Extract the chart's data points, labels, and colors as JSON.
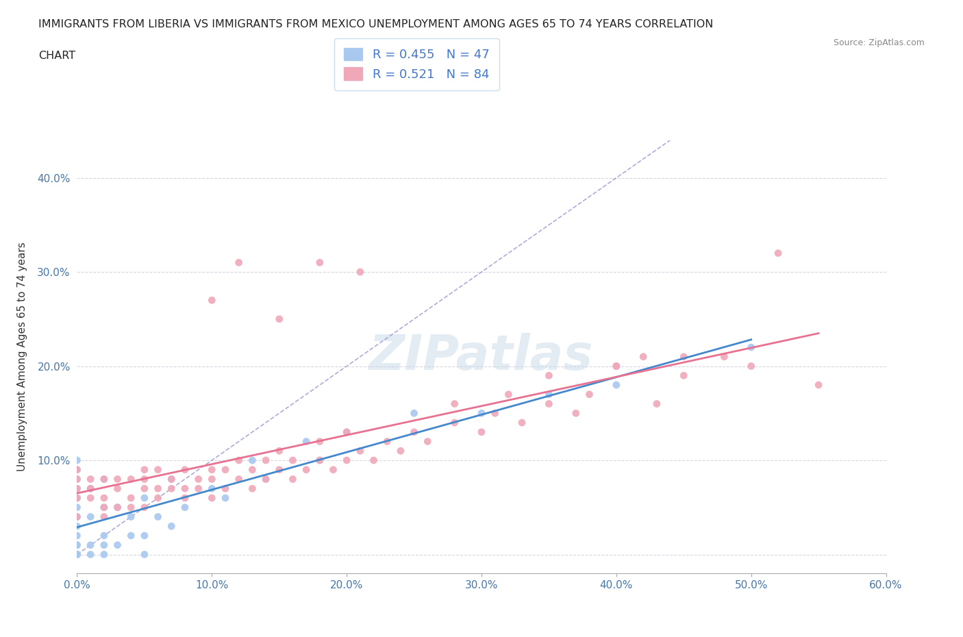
{
  "title_line1": "IMMIGRANTS FROM LIBERIA VS IMMIGRANTS FROM MEXICO UNEMPLOYMENT AMONG AGES 65 TO 74 YEARS CORRELATION",
  "title_line2": "CHART",
  "source": "Source: ZipAtlas.com",
  "ylabel": "Unemployment Among Ages 65 to 74 years",
  "xlabel": "",
  "xlim": [
    0.0,
    0.6
  ],
  "ylim": [
    -0.02,
    0.44
  ],
  "xticks": [
    0.0,
    0.1,
    0.2,
    0.3,
    0.4,
    0.5,
    0.6
  ],
  "yticks": [
    0.0,
    0.1,
    0.2,
    0.3,
    0.4
  ],
  "xticklabels": [
    "0.0%",
    "10.0%",
    "20.0%",
    "30.0%",
    "40.0%",
    "50.0%",
    "60.0%"
  ],
  "yticklabels": [
    "",
    "10.0%",
    "20.0%",
    "30.0%",
    "40.0%"
  ],
  "liberia_R": 0.455,
  "liberia_N": 47,
  "mexico_R": 0.521,
  "mexico_N": 84,
  "liberia_color": "#a8c8f0",
  "mexico_color": "#f0a8b8",
  "liberia_line_color": "#4488cc",
  "mexico_line_color": "#e87090",
  "ref_line_color": "#8888cc",
  "watermark": "ZIPatlas",
  "watermark_color": "#c8d8e8",
  "background_color": "#ffffff",
  "liberia_x": [
    0.0,
    0.0,
    0.0,
    0.0,
    0.0,
    0.0,
    0.0,
    0.0,
    0.0,
    0.0,
    0.0,
    0.0,
    0.0,
    0.0,
    0.0,
    0.01,
    0.01,
    0.01,
    0.01,
    0.02,
    0.02,
    0.02,
    0.02,
    0.02,
    0.03,
    0.03,
    0.04,
    0.04,
    0.05,
    0.05,
    0.05,
    0.06,
    0.07,
    0.07,
    0.08,
    0.1,
    0.11,
    0.13,
    0.14,
    0.17,
    0.18,
    0.2,
    0.25,
    0.3,
    0.35,
    0.4,
    0.5
  ],
  "liberia_y": [
    0.0,
    0.0,
    0.0,
    0.0,
    0.01,
    0.01,
    0.02,
    0.03,
    0.04,
    0.05,
    0.06,
    0.07,
    0.08,
    0.09,
    0.1,
    0.0,
    0.01,
    0.04,
    0.07,
    0.0,
    0.01,
    0.02,
    0.05,
    0.08,
    0.01,
    0.05,
    0.02,
    0.04,
    0.0,
    0.02,
    0.06,
    0.04,
    0.03,
    0.08,
    0.05,
    0.07,
    0.06,
    0.1,
    0.08,
    0.12,
    0.1,
    0.13,
    0.15,
    0.15,
    0.17,
    0.18,
    0.22
  ],
  "mexico_x": [
    0.0,
    0.0,
    0.0,
    0.0,
    0.0,
    0.01,
    0.01,
    0.01,
    0.02,
    0.02,
    0.02,
    0.02,
    0.03,
    0.03,
    0.03,
    0.04,
    0.04,
    0.04,
    0.05,
    0.05,
    0.05,
    0.05,
    0.06,
    0.06,
    0.06,
    0.07,
    0.07,
    0.08,
    0.08,
    0.08,
    0.09,
    0.09,
    0.1,
    0.1,
    0.1,
    0.11,
    0.11,
    0.12,
    0.12,
    0.13,
    0.13,
    0.14,
    0.14,
    0.15,
    0.15,
    0.16,
    0.16,
    0.17,
    0.18,
    0.18,
    0.19,
    0.2,
    0.2,
    0.21,
    0.22,
    0.23,
    0.24,
    0.25,
    0.26,
    0.28,
    0.3,
    0.31,
    0.33,
    0.35,
    0.37,
    0.38,
    0.4,
    0.42,
    0.43,
    0.45,
    0.48,
    0.5,
    0.52,
    0.55,
    0.1,
    0.12,
    0.15,
    0.18,
    0.21,
    0.28,
    0.32,
    0.35,
    0.4,
    0.45
  ],
  "mexico_y": [
    0.04,
    0.06,
    0.07,
    0.08,
    0.09,
    0.06,
    0.07,
    0.08,
    0.04,
    0.05,
    0.06,
    0.08,
    0.05,
    0.07,
    0.08,
    0.05,
    0.06,
    0.08,
    0.05,
    0.07,
    0.08,
    0.09,
    0.06,
    0.07,
    0.09,
    0.07,
    0.08,
    0.06,
    0.07,
    0.09,
    0.07,
    0.08,
    0.06,
    0.08,
    0.09,
    0.07,
    0.09,
    0.08,
    0.1,
    0.07,
    0.09,
    0.08,
    0.1,
    0.09,
    0.11,
    0.08,
    0.1,
    0.09,
    0.1,
    0.12,
    0.09,
    0.1,
    0.13,
    0.11,
    0.1,
    0.12,
    0.11,
    0.13,
    0.12,
    0.14,
    0.13,
    0.15,
    0.14,
    0.16,
    0.15,
    0.17,
    0.2,
    0.21,
    0.16,
    0.19,
    0.21,
    0.2,
    0.32,
    0.18,
    0.27,
    0.31,
    0.25,
    0.31,
    0.3,
    0.16,
    0.17,
    0.19,
    0.2,
    0.21
  ]
}
